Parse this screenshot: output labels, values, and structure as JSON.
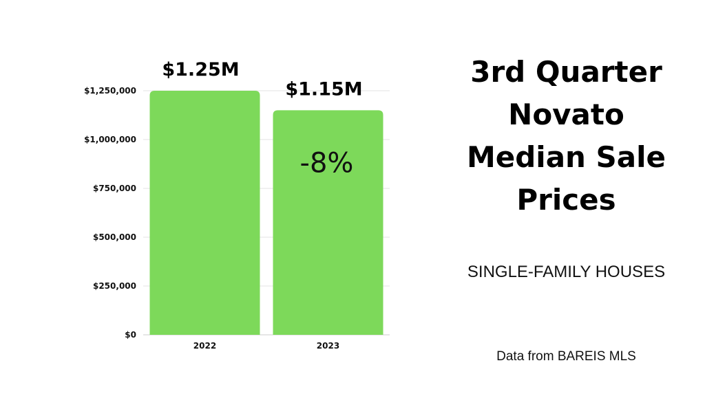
{
  "title_lines": [
    "3rd Quarter",
    "Novato",
    "Median Sale",
    "Prices"
  ],
  "subtitle": "SINGLE-FAMILY HOUSES",
  "source": "Data from BAREIS MLS",
  "colors": {
    "bar": "#7dd95a",
    "grid": "#e3e3e3"
  },
  "chart_data": {
    "type": "bar",
    "categories": [
      "2022",
      "2023"
    ],
    "values": [
      1250000,
      1150000
    ],
    "data_labels": [
      "$1.25M",
      "$1.15M"
    ],
    "annotation": "-8%",
    "yticks": [
      0,
      250000,
      500000,
      750000,
      1000000,
      1250000
    ],
    "ytick_labels": [
      "$0",
      "$250,000",
      "$500,000",
      "$750,000",
      "$1,000,000",
      "$1,250,000"
    ],
    "ylim": [
      0,
      1250000
    ],
    "grid": true,
    "legend": false
  }
}
